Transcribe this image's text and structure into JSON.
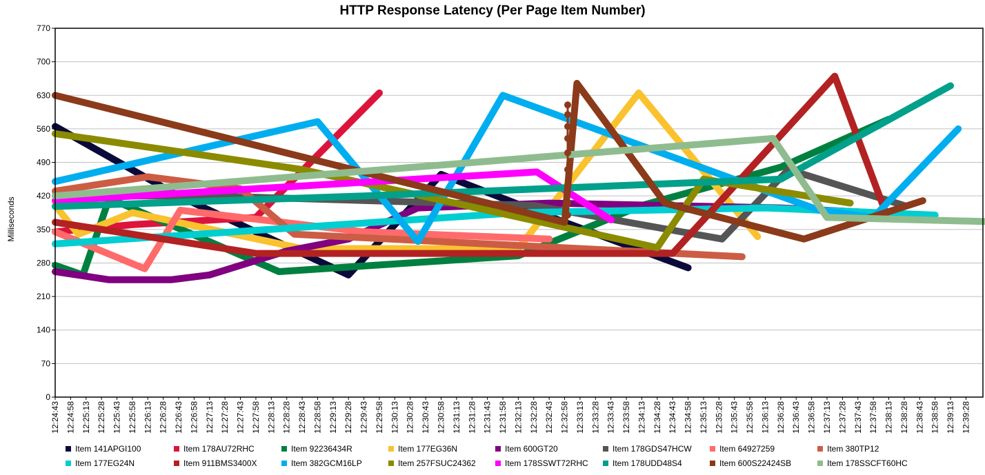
{
  "chart_data": {
    "type": "line",
    "title": "HTTP Response Latency (Per Page Item Number)",
    "xlabel": "",
    "ylabel": "Milliseconds",
    "ylim": [
      0,
      770
    ],
    "yticks": [
      0,
      70,
      140,
      210,
      280,
      350,
      420,
      490,
      560,
      630,
      700,
      770
    ],
    "grid": true,
    "legend_position": "bottom",
    "xticks": [
      "12:24:43",
      "12:24:58",
      "12:25:13",
      "12:25:28",
      "12:25:43",
      "12:25:58",
      "12:26:13",
      "12:26:28",
      "12:26:43",
      "12:26:58",
      "12:27:13",
      "12:27:28",
      "12:27:43",
      "12:27:58",
      "12:28:13",
      "12:28:28",
      "12:28:43",
      "12:28:58",
      "12:29:13",
      "12:29:28",
      "12:29:43",
      "12:29:58",
      "12:30:13",
      "12:30:28",
      "12:30:43",
      "12:30:58",
      "12:31:13",
      "12:31:28",
      "12:31:43",
      "12:31:58",
      "12:32:13",
      "12:32:28",
      "12:32:43",
      "12:32:58",
      "12:33:13",
      "12:33:28",
      "12:33:43",
      "12:33:58",
      "12:34:13",
      "12:34:28",
      "12:34:43",
      "12:34:58",
      "12:35:13",
      "12:35:28",
      "12:35:43",
      "12:35:58",
      "12:36:13",
      "12:36:28",
      "12:36:43",
      "12:36:58",
      "12:37:13",
      "12:37:28",
      "12:37:43",
      "12:37:58",
      "12:38:13",
      "12:38:28",
      "12:38:43",
      "12:38:58",
      "12:39:13",
      "12:39:28"
    ],
    "series": [
      {
        "name": "Item 141APGI100",
        "color": "#0a0a3a",
        "points": [
          [
            0,
            565
          ],
          [
            8,
            420
          ],
          [
            19,
            255
          ],
          [
            25,
            465
          ],
          [
            33,
            365
          ],
          [
            41,
            270
          ]
        ]
      },
      {
        "name": "Item 178AU72RHC",
        "color": "#dc143c",
        "points": [
          [
            0,
            345
          ],
          [
            5,
            360
          ],
          [
            13,
            375
          ],
          [
            21,
            635
          ]
        ]
      },
      {
        "name": "Item 92236434R",
        "color": "#008040",
        "points": [
          [
            0,
            275
          ],
          [
            1.8,
            255
          ],
          [
            3.5,
            415
          ],
          [
            14.5,
            262
          ],
          [
            30,
            295
          ],
          [
            38,
            400
          ],
          [
            47,
            480
          ],
          [
            54,
            580
          ]
        ]
      },
      {
        "name": "Item 177EG36N",
        "color": "#f9c22e",
        "points": [
          [
            0,
            400
          ],
          [
            1.5,
            340
          ],
          [
            5,
            385
          ],
          [
            16,
            310
          ],
          [
            30,
            310
          ],
          [
            37.8,
            635
          ],
          [
            45.5,
            335
          ]
        ]
      },
      {
        "name": "Item 600GT20",
        "color": "#800080",
        "points": [
          [
            0,
            262
          ],
          [
            3.5,
            245
          ],
          [
            7.5,
            245
          ],
          [
            10,
            255
          ],
          [
            15,
            305
          ],
          [
            19,
            330
          ],
          [
            23.5,
            395
          ],
          [
            32,
            405
          ],
          [
            47,
            395
          ],
          [
            53,
            385
          ]
        ]
      },
      {
        "name": "Item 178GDS47HCW",
        "color": "#555555",
        "points": [
          [
            0,
            420
          ],
          [
            10,
            420
          ],
          [
            31,
            400
          ],
          [
            43.2,
            330
          ],
          [
            47.5,
            475
          ],
          [
            55,
            400
          ]
        ]
      },
      {
        "name": "Item 64927259",
        "color": "#ff6b6b",
        "points": [
          [
            0,
            345
          ],
          [
            5.8,
            268
          ],
          [
            8.1,
            390
          ],
          [
            20,
            345
          ],
          [
            32,
            330
          ]
        ]
      },
      {
        "name": "Item 380TP12",
        "color": "#cd5c45",
        "points": [
          [
            0,
            430
          ],
          [
            6,
            460
          ],
          [
            12,
            435
          ],
          [
            15.5,
            340
          ],
          [
            44.5,
            293
          ]
        ]
      },
      {
        "name": "Item 177EG24N",
        "color": "#00ced1",
        "points": [
          [
            0,
            320
          ],
          [
            30,
            385
          ],
          [
            46,
            395
          ],
          [
            57,
            380
          ]
        ]
      },
      {
        "name": "Item 911BMS3400X",
        "color": "#b22222",
        "points": [
          [
            0,
            365
          ],
          [
            13,
            300
          ],
          [
            40,
            300
          ],
          [
            50.5,
            670
          ],
          [
            53.8,
            385
          ]
        ]
      },
      {
        "name": "Item 382GCM16LP",
        "color": "#00aeef",
        "points": [
          [
            0,
            450
          ],
          [
            17,
            575
          ],
          [
            23.5,
            325
          ],
          [
            29,
            630
          ],
          [
            49.5,
            390
          ],
          [
            53,
            375
          ],
          [
            58.5,
            560
          ]
        ]
      },
      {
        "name": "Item 257FSUC24362",
        "color": "#8b8b00",
        "points": [
          [
            0,
            550
          ],
          [
            16,
            475
          ],
          [
            39,
            312
          ],
          [
            42,
            455
          ],
          [
            51.5,
            405
          ]
        ]
      },
      {
        "name": "Item 178SSWT72RHC",
        "color": "#ff00ff",
        "points": [
          [
            0,
            410
          ],
          [
            31.2,
            470
          ],
          [
            36,
            370
          ]
        ]
      },
      {
        "name": "Item 178UDD48S4",
        "color": "#00a08a",
        "points": [
          [
            0,
            398
          ],
          [
            20,
            420
          ],
          [
            47,
            455
          ],
          [
            58,
            650
          ]
        ]
      },
      {
        "name": "Item 600S22424SB",
        "color": "#8b3a1a",
        "points": [
          [
            0,
            630
          ],
          [
            33,
            365
          ],
          [
            33.8,
            655
          ],
          [
            39.5,
            405
          ],
          [
            48.5,
            330
          ],
          [
            56.2,
            410
          ]
        ]
      },
      {
        "name": "Item 178SSCFT60HC",
        "color": "#8fbc8f",
        "points": [
          [
            0,
            420
          ],
          [
            46.5,
            540
          ],
          [
            50,
            375
          ],
          [
            62,
            365
          ]
        ]
      }
    ],
    "spike": {
      "series": "Item 600S22424SB",
      "x": 33.2,
      "values": [
        380,
        405,
        440,
        475,
        510,
        540,
        565,
        590,
        610
      ]
    }
  }
}
